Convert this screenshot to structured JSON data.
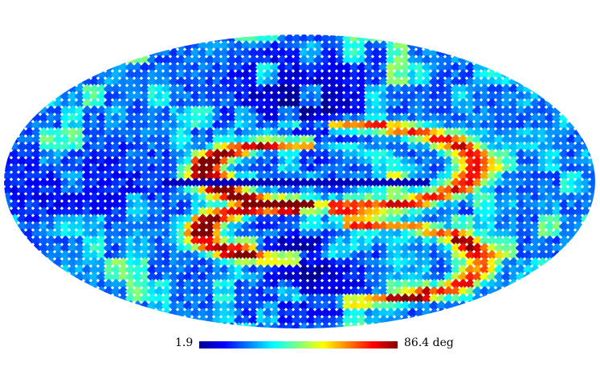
{
  "map": {
    "projection": "mollweide",
    "colormap": [
      "#00008f",
      "#0000ff",
      "#00ffff",
      "#ffff00",
      "#ff0000",
      "#800000"
    ]
  },
  "colorbar": {
    "min_label": "1.9",
    "max_label": "86.4 deg",
    "min_value": 1.9,
    "max_value": 86.4,
    "unit": "deg"
  }
}
